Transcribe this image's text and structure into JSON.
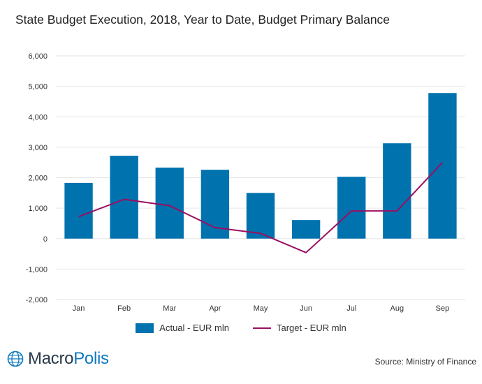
{
  "title": "State Budget Execution, 2018, Year to Date, Budget Primary Balance",
  "source": "Source: Ministry of Finance",
  "logo": {
    "part1": "Macro",
    "part2": "Polis",
    "icon": "globe-icon"
  },
  "colors": {
    "actual": "#0072ae",
    "target": "#9b0e62",
    "grid": "#e6e6e6",
    "axis": "#cccccc"
  },
  "chart_data": {
    "type": "bar",
    "categories": [
      "Jan",
      "Feb",
      "Mar",
      "Apr",
      "May",
      "Jun",
      "Jul",
      "Aug",
      "Sep"
    ],
    "series": [
      {
        "name": "Actual - EUR mln",
        "type": "bar",
        "values": [
          1830,
          2720,
          2330,
          2260,
          1500,
          610,
          2030,
          3130,
          4780
        ]
      },
      {
        "name": "Target - EUR mln",
        "type": "line",
        "values": [
          720,
          1290,
          1080,
          360,
          170,
          -460,
          910,
          910,
          2500
        ]
      }
    ],
    "yticks": [
      "6,000",
      "5,000",
      "4,000",
      "3,000",
      "2,000",
      "1,000",
      "0",
      "-1,000",
      "-2,000"
    ],
    "ylim": [
      -2000,
      6000
    ],
    "grid": true,
    "legend_position": "bottom"
  }
}
